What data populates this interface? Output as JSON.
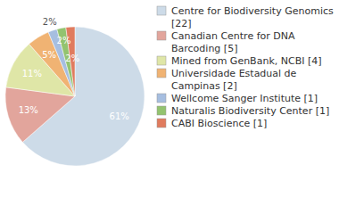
{
  "chart_data": {
    "type": "pie",
    "categories": [
      "Centre for Biodiversity Genomics [22]",
      "Canadian Centre for DNA Barcoding [5]",
      "Mined from GenBank, NCBI [4]",
      "Universidade Estadual de Campinas [2]",
      "Wellcome Sanger Institute [1]",
      "Naturalis Biodiversity Center [1]",
      "CABI Bioscience [1]"
    ],
    "values": [
      61,
      13,
      11,
      5,
      2,
      2,
      2
    ],
    "value_labels": [
      "61%",
      "13%",
      "11%",
      "5%",
      "2%",
      "2%",
      "2%"
    ],
    "colors": [
      "#cddbe8",
      "#e2a59c",
      "#dfe6a7",
      "#f0b373",
      "#a6bee0",
      "#93c36f",
      "#e07b5e"
    ],
    "data_labels": true,
    "legend": "right"
  }
}
